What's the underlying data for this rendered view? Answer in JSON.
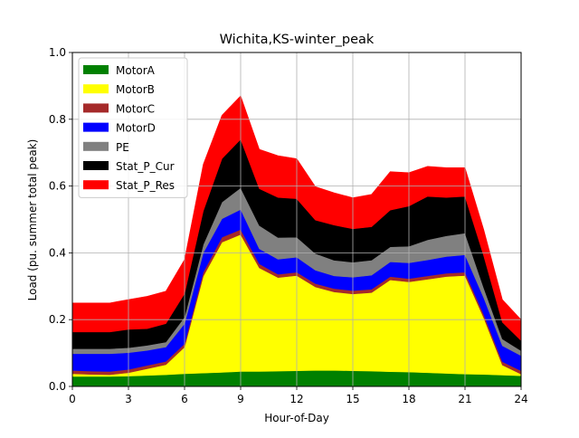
{
  "chart_data": {
    "type": "area",
    "stacked": true,
    "title": "Wichita,KS-winter_peak",
    "xlabel": "Hour-of-Day",
    "ylabel": "Load (pu. summer total peak)",
    "xlim": [
      0,
      24
    ],
    "ylim": [
      0,
      1.0
    ],
    "xticks": [
      0,
      3,
      6,
      9,
      12,
      15,
      18,
      21,
      24
    ],
    "xtick_labels": [
      "0",
      "3",
      "6",
      "9",
      "12",
      "15",
      "18",
      "21",
      "24"
    ],
    "yticks": [
      0.0,
      0.2,
      0.4,
      0.6,
      0.8,
      1.0
    ],
    "ytick_labels": [
      "0.0",
      "0.2",
      "0.4",
      "0.6",
      "0.8",
      "1.0"
    ],
    "grid": true,
    "legend_position": "upper-left",
    "x": [
      0,
      1,
      2,
      3,
      4,
      5,
      6,
      7,
      8,
      9,
      10,
      11,
      12,
      13,
      14,
      15,
      16,
      17,
      18,
      19,
      20,
      21,
      22,
      23,
      24
    ],
    "series": [
      {
        "name": "MotorA",
        "color": "#008000",
        "values": [
          0.03,
          0.03,
          0.03,
          0.031,
          0.033,
          0.035,
          0.038,
          0.04,
          0.042,
          0.045,
          0.045,
          0.046,
          0.047,
          0.048,
          0.048,
          0.047,
          0.046,
          0.044,
          0.043,
          0.041,
          0.039,
          0.037,
          0.036,
          0.034,
          0.032
        ]
      },
      {
        "name": "MotorB",
        "color": "#ffff00",
        "values": [
          0.008,
          0.006,
          0.005,
          0.01,
          0.02,
          0.03,
          0.08,
          0.29,
          0.39,
          0.41,
          0.31,
          0.28,
          0.285,
          0.25,
          0.235,
          0.23,
          0.235,
          0.275,
          0.27,
          0.28,
          0.29,
          0.295,
          0.17,
          0.03,
          0.005
        ]
      },
      {
        "name": "MotorC",
        "color": "#a52a2a",
        "values": [
          0.01,
          0.01,
          0.01,
          0.01,
          0.01,
          0.01,
          0.01,
          0.012,
          0.015,
          0.015,
          0.012,
          0.01,
          0.01,
          0.01,
          0.01,
          0.01,
          0.01,
          0.01,
          0.01,
          0.01,
          0.01,
          0.01,
          0.01,
          0.01,
          0.01
        ]
      },
      {
        "name": "MotorD",
        "color": "#0000ff",
        "values": [
          0.05,
          0.052,
          0.053,
          0.05,
          0.045,
          0.043,
          0.06,
          0.058,
          0.055,
          0.06,
          0.045,
          0.045,
          0.045,
          0.04,
          0.038,
          0.04,
          0.042,
          0.044,
          0.047,
          0.048,
          0.05,
          0.052,
          0.05,
          0.048,
          0.045
        ]
      },
      {
        "name": "PE",
        "color": "#808080",
        "values": [
          0.015,
          0.015,
          0.015,
          0.015,
          0.015,
          0.015,
          0.02,
          0.025,
          0.05,
          0.065,
          0.07,
          0.065,
          0.06,
          0.05,
          0.047,
          0.045,
          0.045,
          0.045,
          0.05,
          0.06,
          0.062,
          0.065,
          0.03,
          0.02,
          0.015
        ]
      },
      {
        "name": "Stat_P_Cur",
        "color": "#000000",
        "values": [
          0.05,
          0.05,
          0.05,
          0.055,
          0.05,
          0.055,
          0.07,
          0.1,
          0.13,
          0.145,
          0.11,
          0.12,
          0.115,
          0.1,
          0.105,
          0.1,
          0.1,
          0.11,
          0.12,
          0.13,
          0.115,
          0.11,
          0.095,
          0.05,
          0.03
        ]
      },
      {
        "name": "Stat_P_Res",
        "color": "#ff0000",
        "values": [
          0.087,
          0.087,
          0.087,
          0.089,
          0.097,
          0.097,
          0.102,
          0.14,
          0.13,
          0.13,
          0.118,
          0.125,
          0.12,
          0.1,
          0.097,
          0.093,
          0.097,
          0.115,
          0.1,
          0.09,
          0.089,
          0.086,
          0.079,
          0.068,
          0.063
        ]
      }
    ]
  }
}
